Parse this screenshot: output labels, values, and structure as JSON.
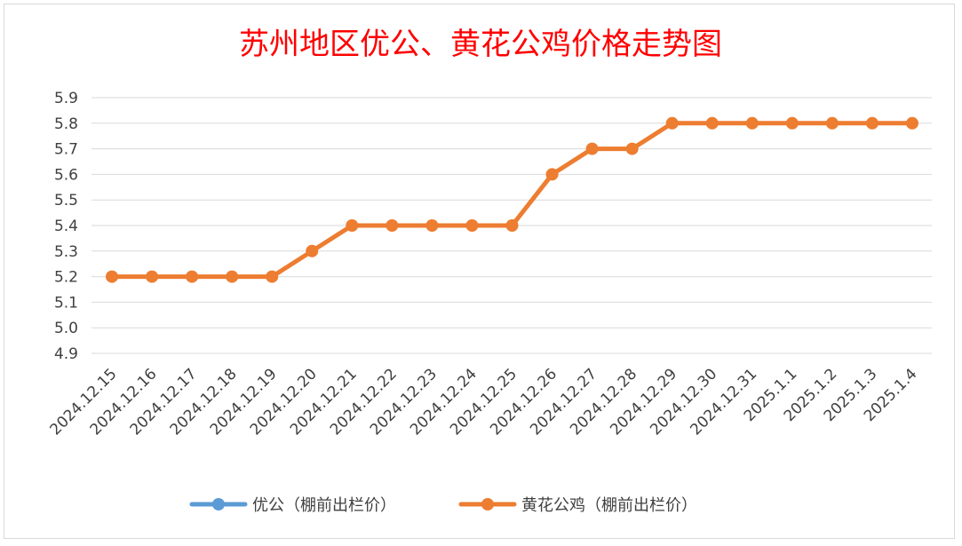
{
  "chart_data": {
    "type": "line",
    "title": "苏州地区优公、黄花公鸡价格走势图",
    "xlabel": "",
    "ylabel": "",
    "categories": [
      "2024.12.15",
      "2024.12.16",
      "2024.12.17",
      "2024.12.18",
      "2024.12.19",
      "2024.12.20",
      "2024.12.21",
      "2024.12.22",
      "2024.12.23",
      "2024.12.24",
      "2024.12.25",
      "2024.12.26",
      "2024.12.27",
      "2024.12.28",
      "2024.12.29",
      "2024.12.30",
      "2024.12.31",
      "2025.1.1",
      "2025.1.2",
      "2025.1.3",
      "2025.1.4"
    ],
    "yticks": [
      "4.9",
      "5.0",
      "5.1",
      "5.2",
      "5.3",
      "5.4",
      "5.5",
      "5.6",
      "5.7",
      "5.8",
      "5.9"
    ],
    "ylim": [
      4.9,
      5.9
    ],
    "grid": true,
    "legend_position": "bottom",
    "series": [
      {
        "name": "优公（棚前出栏价）",
        "color": "#5b9bd5",
        "values": [
          null,
          null,
          null,
          null,
          null,
          null,
          null,
          null,
          null,
          null,
          null,
          null,
          null,
          null,
          null,
          null,
          null,
          null,
          null,
          null,
          null
        ]
      },
      {
        "name": "黄花公鸡（棚前出栏价）",
        "color": "#ed7d31",
        "values": [
          5.2,
          5.2,
          5.2,
          5.2,
          5.2,
          5.3,
          5.4,
          5.4,
          5.4,
          5.4,
          5.4,
          5.6,
          5.7,
          5.7,
          5.8,
          5.8,
          5.8,
          5.8,
          5.8,
          5.8,
          5.8
        ]
      }
    ]
  }
}
